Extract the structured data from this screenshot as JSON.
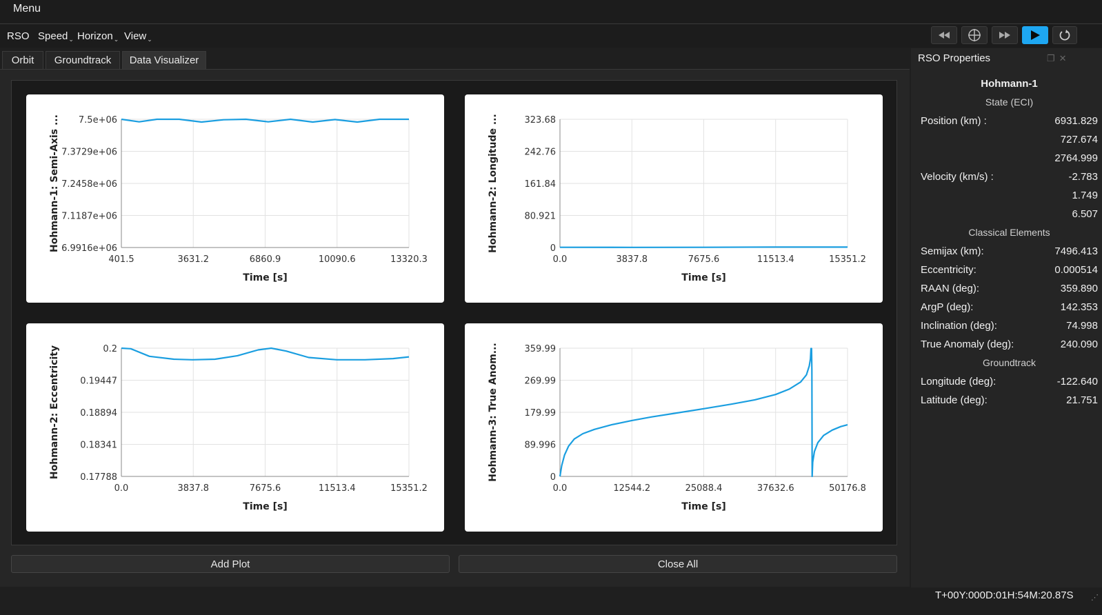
{
  "topbar": {
    "menu_label": "Menu"
  },
  "menubar": {
    "items": [
      "RSO",
      "Speed",
      "Horizon",
      "View"
    ]
  },
  "controls": [
    {
      "name": "rewind-icon",
      "glyph": "◀◀"
    },
    {
      "name": "crosshair-icon",
      "glyph": "⊕"
    },
    {
      "name": "fast-forward-icon",
      "glyph": "▶▶"
    },
    {
      "name": "play-icon",
      "glyph": "▶"
    },
    {
      "name": "reset-icon",
      "glyph": "↻"
    }
  ],
  "tabs": [
    "Orbit",
    "Groundtrack",
    "Data Visualizer"
  ],
  "buttons": {
    "add_plot": "Add Plot",
    "close_all": "Close All"
  },
  "colors": {
    "line": "#1a9ee0",
    "accent": "#1ea7f2"
  },
  "panel": {
    "title": "RSO Properties",
    "object_name": "Hohmann-1",
    "state_header": "State (ECI)",
    "position_label": "Position (km) :",
    "position": [
      "6931.829",
      "727.674",
      "2764.999"
    ],
    "velocity_label": "Velocity (km/s) :",
    "velocity": [
      "-2.783",
      "1.749",
      "6.507"
    ],
    "classical_header": "Classical Elements",
    "elements": [
      {
        "label": "Semijax (km):",
        "value": "7496.413"
      },
      {
        "label": "Eccentricity:",
        "value": "0.000514"
      },
      {
        "label": "RAAN (deg):",
        "value": "359.890"
      },
      {
        "label": "ArgP (deg):",
        "value": "142.353"
      },
      {
        "label": "Inclination (deg):",
        "value": "74.998"
      },
      {
        "label": "True Anomaly (deg):",
        "value": "240.090"
      }
    ],
    "groundtrack_header": "Groundtrack",
    "groundtrack": [
      {
        "label": "Longitude (deg):",
        "value": "-122.640"
      },
      {
        "label": "Latitude (deg):",
        "value": "21.751"
      }
    ]
  },
  "status": {
    "time": "T+00Y:000D:01H:54M:20.87S"
  },
  "chart_data": [
    {
      "type": "line",
      "xlabel": "Time [s]",
      "ylabel": "Hohmann-1: Semi-Axis ...",
      "xticks": [
        "401.5",
        "3631.2",
        "6860.9",
        "10090.6",
        "13320.3"
      ],
      "yticks": [
        "6.9916e+06",
        "7.1187e+06",
        "7.2458e+06",
        "7.3729e+06",
        "7.5e+06"
      ],
      "xlim": [
        401.5,
        13320.3
      ],
      "ylim": [
        6991600,
        7500000
      ],
      "series": [
        {
          "x": [
            401.5,
            1200,
            2000,
            3000,
            4000,
            5000,
            6000,
            7000,
            8000,
            9000,
            10000,
            11000,
            12000,
            13000,
            13320.3
          ],
          "y": [
            7500000,
            7490000,
            7500000,
            7500000,
            7489000,
            7498000,
            7500000,
            7490000,
            7500000,
            7489000,
            7499000,
            7489000,
            7500000,
            7500000,
            7500000
          ]
        }
      ]
    },
    {
      "type": "line",
      "xlabel": "Time [s]",
      "ylabel": "Hohmann-2: Longitude ...",
      "xticks": [
        "0.0",
        "3837.8",
        "7675.6",
        "11513.4",
        "15351.2"
      ],
      "yticks": [
        "0",
        "80.921",
        "161.84",
        "242.76",
        "323.68"
      ],
      "xlim": [
        0,
        15351.2
      ],
      "ylim": [
        0,
        323.68
      ],
      "series": [
        {
          "x": [
            0,
            3837.8,
            7675.6,
            11513.4,
            15351.2
          ],
          "y": [
            0.5,
            0.3,
            0.6,
            1.2,
            1.0
          ]
        }
      ]
    },
    {
      "type": "line",
      "xlabel": "Time [s]",
      "ylabel": "Hohmann-2: Eccentricity",
      "xticks": [
        "0.0",
        "3837.8",
        "7675.6",
        "11513.4",
        "15351.2"
      ],
      "yticks": [
        "0.17788",
        "0.18341",
        "0.18894",
        "0.19447",
        "0.2"
      ],
      "xlim": [
        0,
        15351.2
      ],
      "ylim": [
        0.17788,
        0.2
      ],
      "series": [
        {
          "x": [
            0,
            500,
            1500,
            2800,
            3800,
            5000,
            6200,
            7300,
            8000,
            8800,
            10000,
            11500,
            13000,
            14500,
            15351.2
          ],
          "y": [
            0.2,
            0.1999,
            0.1986,
            0.1981,
            0.198,
            0.1981,
            0.1987,
            0.1997,
            0.2,
            0.1995,
            0.1984,
            0.198,
            0.198,
            0.1982,
            0.1985
          ]
        }
      ]
    },
    {
      "type": "line",
      "xlabel": "Time [s]",
      "ylabel": "Hohmann-3: True Anom...",
      "xticks": [
        "0.0",
        "12544.2",
        "25088.4",
        "37632.6",
        "50176.8"
      ],
      "yticks": [
        "0",
        "89.996",
        "179.99",
        "269.99",
        "359.99"
      ],
      "xlim": [
        0,
        50176.8
      ],
      "ylim": [
        0,
        359.99
      ],
      "series": [
        {
          "x": [
            0,
            300,
            800,
            1500,
            2500,
            4000,
            6000,
            9000,
            12544.2,
            16000,
            20000,
            25088.4,
            30000,
            34000,
            37632.6,
            40000,
            42000,
            43000,
            43500,
            43700,
            43800,
            43900,
            43950,
            44000,
            44100,
            44400,
            45000,
            46000,
            47500,
            49000,
            50176.8
          ],
          "y": [
            0,
            30,
            60,
            85,
            105,
            120,
            132,
            145,
            157,
            167,
            177,
            190,
            203,
            215,
            230,
            245,
            265,
            285,
            310,
            330,
            359,
            359,
            300,
            0,
            40,
            70,
            95,
            115,
            130,
            140,
            145
          ]
        }
      ]
    }
  ]
}
